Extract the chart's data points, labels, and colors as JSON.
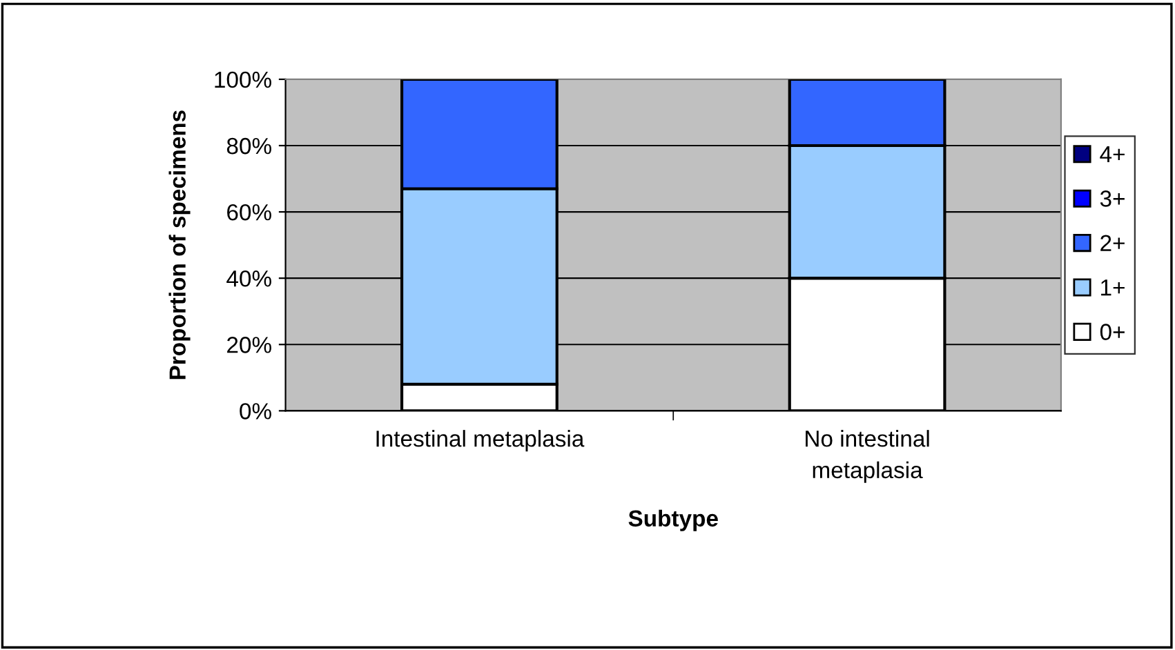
{
  "chart_data": {
    "type": "bar",
    "stacked": true,
    "xlabel": "Subtype",
    "ylabel": "Proportion of specimens",
    "categories": [
      "Intestinal metaplasia",
      "No intestinal\nmetaplasia"
    ],
    "series": [
      {
        "name": "0+",
        "color": "#ffffff",
        "values": [
          8,
          40
        ]
      },
      {
        "name": "1+",
        "color": "#99ccff",
        "values": [
          59,
          40
        ]
      },
      {
        "name": "2+",
        "color": "#3366ff",
        "values": [
          33,
          20
        ]
      },
      {
        "name": "3+",
        "color": "#0000ff",
        "values": [
          0,
          0
        ]
      },
      {
        "name": "4+",
        "color": "#000080",
        "values": [
          0,
          0
        ]
      }
    ],
    "ylim": [
      0,
      100
    ],
    "yticks": [
      {
        "value": 0,
        "label": "0%"
      },
      {
        "value": 20,
        "label": "20%"
      },
      {
        "value": 40,
        "label": "40%"
      },
      {
        "value": 60,
        "label": "60%"
      },
      {
        "value": 80,
        "label": "80%"
      },
      {
        "value": 100,
        "label": "100%"
      }
    ],
    "grid": "y",
    "legend": "right"
  }
}
